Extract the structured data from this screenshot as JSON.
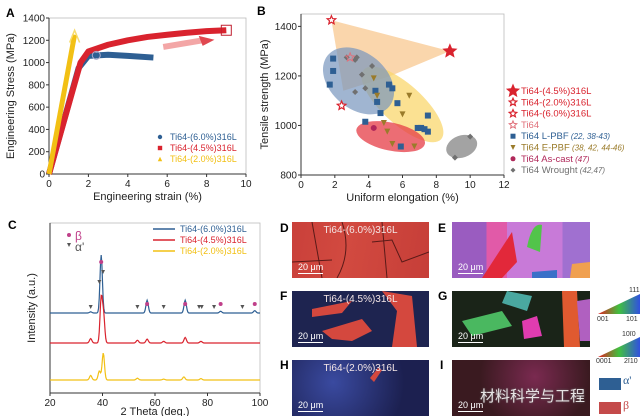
{
  "panel_labels": [
    "A",
    "B",
    "C",
    "D",
    "E",
    "F",
    "G",
    "H",
    "I"
  ],
  "chart_data": [
    {
      "type": "line",
      "panel": "A",
      "xlabel": "Engineering strain (%)",
      "ylabel": "Engineering Stress (MPa)",
      "xlim": [
        0,
        10
      ],
      "ylim": [
        0,
        1400
      ],
      "xticks": [
        0,
        2,
        4,
        6,
        8,
        10
      ],
      "yticks": [
        0,
        200,
        400,
        600,
        800,
        1000,
        1200,
        1400
      ],
      "legend": "bottom-right",
      "series": [
        {
          "name": "Ti64-(6.0%)316L",
          "color": "#2e5f93",
          "marker": "circle",
          "x": [
            0,
            1.5,
            2.0,
            3,
            4,
            5.3
          ],
          "y": [
            0,
            950,
            1060,
            1070,
            1060,
            1045
          ]
        },
        {
          "name": "Ti64-(4.5%)316L",
          "color": "#d9232e",
          "marker": "square",
          "x": [
            0,
            1.6,
            2,
            3,
            4,
            5,
            6,
            7,
            8,
            9
          ],
          "y": [
            0,
            1000,
            1100,
            1160,
            1200,
            1230,
            1250,
            1268,
            1282,
            1290
          ]
        },
        {
          "name": "Ti64-(2.0%)316L",
          "color": "#f2c014",
          "marker": "triangle",
          "x": [
            0,
            1.3
          ],
          "y": [
            0,
            1250
          ]
        }
      ]
    },
    {
      "type": "scatter",
      "panel": "B",
      "xlabel": "Uniform elongation (%)",
      "ylabel": "Tensile strength (MPa)",
      "xlim": [
        0,
        12
      ],
      "ylim": [
        800,
        1450
      ],
      "xticks": [
        0,
        2,
        4,
        6,
        8,
        10,
        12
      ],
      "yticks": [
        800,
        1000,
        1200,
        1400
      ],
      "legend": "right",
      "series": [
        {
          "name": "Ti64-(4.5%)316L",
          "ref": "",
          "color": "#d9232e",
          "marker": "star-large",
          "x": [
            8.8
          ],
          "y": [
            1300
          ]
        },
        {
          "name": "Ti64-(2.0%)316L",
          "ref": "",
          "color": "#d9232e",
          "marker": "star",
          "x": [
            1.8
          ],
          "y": [
            1425
          ]
        },
        {
          "name": "Ti64-(6.0%)316L",
          "ref": "",
          "color": "#d9232e",
          "marker": "star",
          "x": [
            2.4
          ],
          "y": [
            1080
          ]
        },
        {
          "name": "Ti64",
          "ref": "",
          "color": "#e0707a",
          "marker": "star-open",
          "x": [
            2.9
          ],
          "y": [
            1275
          ]
        },
        {
          "name": "Ti64 L-PBF",
          "ref": "(22, 38-43)",
          "color": "#2e5f93",
          "marker": "square",
          "x": [
            1.7,
            1.9,
            1.9,
            3.8,
            4.4,
            4.5,
            4.7,
            5.2,
            5.4,
            5.7,
            6.9,
            7.1,
            7.3,
            7.5,
            7.5,
            5.9
          ],
          "y": [
            1165,
            1270,
            1220,
            1015,
            1140,
            1095,
            1050,
            1165,
            1150,
            1090,
            990,
            990,
            985,
            975,
            1040,
            915
          ]
        },
        {
          "name": "Ti64 E-PBF",
          "ref": "(38, 42, 44-46)",
          "color": "#9a7b2a",
          "marker": "triangle-down",
          "x": [
            4.3,
            4.5,
            4.9,
            5.1,
            5.4,
            6.0,
            6.4,
            6.7
          ],
          "y": [
            1190,
            1120,
            1010,
            975,
            925,
            1045,
            1120,
            915
          ]
        },
        {
          "name": "Ti64 As-cast",
          "ref": "(47)",
          "color": "#b0285a",
          "marker": "circle",
          "x": [
            4.3
          ],
          "y": [
            990
          ]
        },
        {
          "name": "Ti64 Wrought",
          "ref": "(42,47)",
          "color": "#707070",
          "marker": "diamond",
          "x": [
            3.8,
            3.6,
            3.2,
            3.2,
            3.3,
            2.7,
            4.2,
            9.1,
            10.0
          ],
          "y": [
            1150,
            1205,
            1135,
            1265,
            1275,
            1275,
            1240,
            870,
            955
          ]
        }
      ]
    },
    {
      "type": "line",
      "panel": "C",
      "xlabel": "2 Theta (deg.)",
      "ylabel": "Intensity (a.u.)",
      "xlim": [
        20,
        100
      ],
      "xticks": [
        20,
        40,
        60,
        80,
        100
      ],
      "legend": "top-right",
      "phase_markers": {
        "beta": {
          "label": "β",
          "color": "#c0408a",
          "x": [
            39.5,
            57,
            71.5,
            85,
            98
          ]
        },
        "alpha_prime": {
          "label": "α'",
          "color": "#555555",
          "x": [
            35.5,
            38.8,
            40.2,
            53.3,
            63.3,
            76.8,
            77.8,
            82.5,
            93.3
          ]
        }
      },
      "series": [
        {
          "name": "Ti64-(6.0%)316L",
          "color": "#2e5f93",
          "peaks": [
            [
              35.5,
              0.02
            ],
            [
              39.5,
              1.0
            ],
            [
              57,
              0.22
            ],
            [
              71.5,
              0.22
            ],
            [
              85,
              0.03
            ],
            [
              98,
              0.04
            ]
          ]
        },
        {
          "name": "Ti64-(4.5%)316L",
          "color": "#d9232e",
          "peaks": [
            [
              35.5,
              0.08
            ],
            [
              39.5,
              0.8
            ],
            [
              40.4,
              0.5
            ],
            [
              53.3,
              0.05
            ],
            [
              57,
              0.07
            ],
            [
              63.3,
              0.03
            ],
            [
              71.5,
              0.1
            ],
            [
              77.5,
              0.03
            ]
          ]
        },
        {
          "name": "Ti64-(2.0%)316L",
          "color": "#f2c014",
          "peaks": [
            [
              35.5,
              0.1
            ],
            [
              38.8,
              0.2
            ],
            [
              40.3,
              0.6
            ],
            [
              53.3,
              0.04
            ],
            [
              63.3,
              0.02
            ],
            [
              71,
              0.07
            ],
            [
              77.5,
              0.03
            ]
          ]
        }
      ]
    }
  ],
  "micrographs": {
    "D": {
      "caption": "Ti64-(6.0%)316L",
      "scale": "20 μm"
    },
    "E": {
      "caption": "",
      "scale": "20 μm"
    },
    "F": {
      "caption": "Ti64-(4.5%)316L",
      "scale": "20 μm"
    },
    "G": {
      "caption": "",
      "scale": "20 μm"
    },
    "H": {
      "caption": "Ti64-(2.0%)316L",
      "scale": "20 μm"
    },
    "I": {
      "caption": "",
      "scale": "20 μm"
    }
  },
  "color_keys": {
    "fcc": [
      "111",
      "001",
      "101"
    ],
    "hcp": [
      "10ī0",
      "0001",
      "2ī10"
    ],
    "phase": [
      {
        "label": "α'",
        "color": "#2e5f93"
      },
      {
        "label": "β",
        "color": "#c44a4a"
      }
    ]
  },
  "watermark": "材料科学与工程"
}
